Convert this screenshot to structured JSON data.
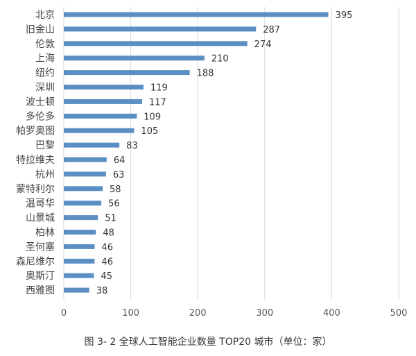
{
  "chart_data": {
    "type": "bar",
    "orientation": "horizontal",
    "title": "图 3- 2  全球人工智能企业数量 TOP20 城市（单位：家）",
    "categories": [
      "北京",
      "旧金山",
      "伦敦",
      "上海",
      "纽约",
      "深圳",
      "波士顿",
      "多伦多",
      "帕罗奥图",
      "巴黎",
      "特拉维夫",
      "杭州",
      "蒙特利尔",
      "温哥华",
      "山景城",
      "柏林",
      "圣何塞",
      "森尼维尔",
      "奥斯汀",
      "西雅图"
    ],
    "values": [
      395,
      287,
      274,
      210,
      188,
      119,
      117,
      109,
      105,
      83,
      64,
      63,
      58,
      56,
      51,
      48,
      46,
      46,
      45,
      38
    ],
    "xlim": [
      0,
      500
    ],
    "xticks": [
      "0",
      "100",
      "200",
      "300",
      "400",
      "500"
    ],
    "grid": true,
    "legend": "none",
    "bar_color": "#5b8fc3",
    "grid_color": "#d9d9d9"
  }
}
